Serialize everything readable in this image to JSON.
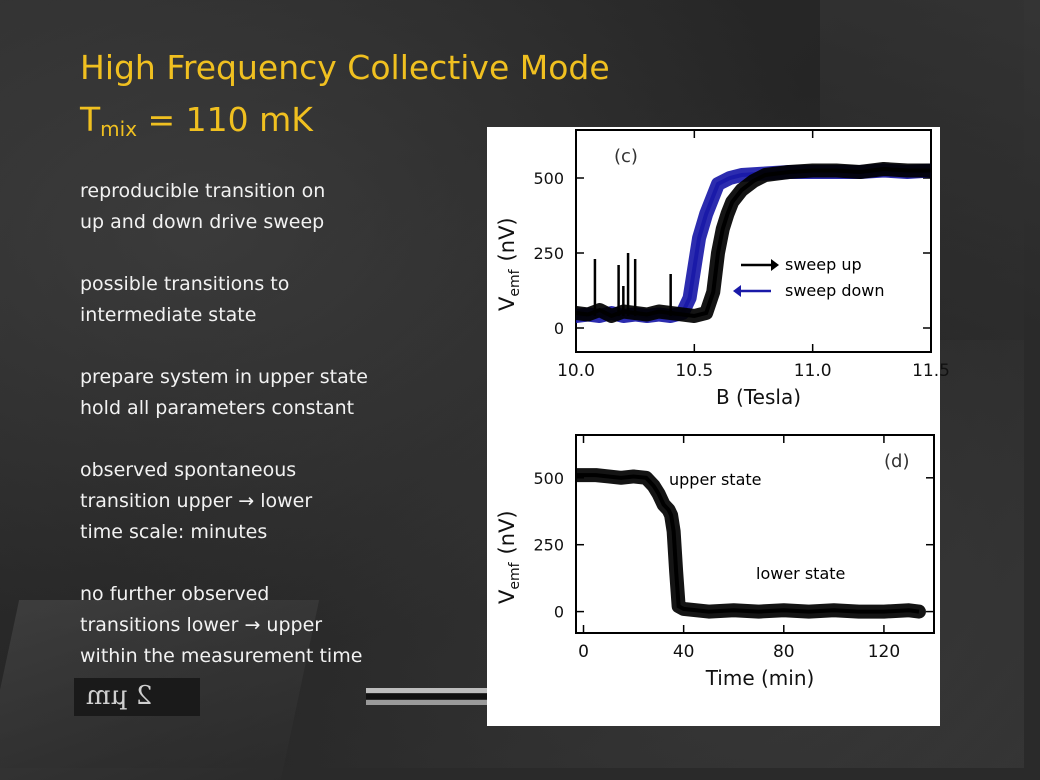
{
  "slide": {
    "title_line1": "High Frequency Collective Mode",
    "title_T": "T",
    "title_sub": "mix",
    "title_rest": " =  110 mK",
    "bullets": [
      [
        "reproducible transition on",
        "up and down drive sweep"
      ],
      [
        "possible transitions to",
        "intermediate state"
      ],
      [
        "prepare system in upper state",
        "hold all parameters constant"
      ],
      [
        "observed spontaneous",
        "transition   upper → lower",
        "time scale: minutes"
      ],
      [
        "no further observed",
        "transitions lower → upper",
        "within the measurement time"
      ]
    ],
    "scale_label": "2 µm"
  },
  "colors": {
    "title": "#f0c020",
    "text": "#f2f2f2",
    "sweep_up": "#000000",
    "sweep_down": "#1a1aa8"
  },
  "chart_data": [
    {
      "type": "line",
      "panel_label": "(c)",
      "xlabel": "B  (Tesla)",
      "ylabel": "V",
      "ylabel_sub": "emf",
      "ylabel_unit": "(nV)",
      "xlim": [
        10.0,
        11.5
      ],
      "ylim": [
        -80,
        660
      ],
      "xticks": [
        "10.0",
        "10.5",
        "11.0",
        "11.5"
      ],
      "yticks": [
        "0",
        "250",
        "500"
      ],
      "series": [
        {
          "name": "sweep up",
          "x": [
            10.0,
            10.05,
            10.1,
            10.15,
            10.2,
            10.25,
            10.3,
            10.35,
            10.4,
            10.45,
            10.5,
            10.55,
            10.58,
            10.6,
            10.62,
            10.64,
            10.66,
            10.7,
            10.75,
            10.8,
            10.9,
            11.0,
            11.1,
            11.2,
            11.3,
            11.4,
            11.5
          ],
          "y": [
            50,
            45,
            60,
            40,
            55,
            50,
            45,
            55,
            50,
            45,
            40,
            50,
            120,
            250,
            330,
            380,
            420,
            460,
            490,
            510,
            520,
            525,
            525,
            520,
            530,
            525,
            525
          ]
        },
        {
          "name": "sweep down",
          "x": [
            10.0,
            10.05,
            10.1,
            10.15,
            10.2,
            10.25,
            10.3,
            10.35,
            10.4,
            10.45,
            10.48,
            10.5,
            10.52,
            10.55,
            10.58,
            10.6,
            10.65,
            10.7,
            10.8,
            10.9,
            11.0,
            11.1,
            11.2,
            11.3,
            11.4,
            11.5
          ],
          "y": [
            40,
            45,
            40,
            50,
            40,
            45,
            40,
            45,
            40,
            50,
            100,
            200,
            300,
            380,
            440,
            480,
            500,
            510,
            515,
            520,
            520,
            520,
            520,
            525,
            520,
            525
          ]
        }
      ],
      "spikes": [
        {
          "x": 10.08,
          "y": 230
        },
        {
          "x": 10.18,
          "y": 210
        },
        {
          "x": 10.2,
          "y": 140
        },
        {
          "x": 10.22,
          "y": 250
        },
        {
          "x": 10.25,
          "y": 230
        },
        {
          "x": 10.4,
          "y": 180
        }
      ],
      "legend": [
        {
          "label": "sweep up",
          "color": "#000000"
        },
        {
          "label": "sweep down",
          "color": "#1a1aa8"
        }
      ]
    },
    {
      "type": "line",
      "panel_label": "(d)",
      "xlabel": "Time (min)",
      "ylabel": "V",
      "ylabel_sub": "emf",
      "ylabel_unit": "(nV)",
      "xlim": [
        -3,
        140
      ],
      "ylim": [
        -80,
        660
      ],
      "xticks": [
        "0",
        "40",
        "80",
        "120"
      ],
      "yticks": [
        "0",
        "250",
        "500"
      ],
      "series": [
        {
          "name": "",
          "x": [
            -3,
            5,
            10,
            15,
            20,
            25,
            28,
            30,
            32,
            34,
            35,
            36,
            37,
            38,
            40,
            50,
            60,
            70,
            80,
            90,
            100,
            110,
            120,
            130,
            134
          ],
          "y": [
            510,
            510,
            505,
            500,
            505,
            500,
            470,
            440,
            400,
            380,
            360,
            300,
            150,
            20,
            10,
            0,
            5,
            0,
            5,
            0,
            5,
            0,
            0,
            5,
            0
          ]
        }
      ],
      "annotations": [
        "upper state",
        "lower state"
      ]
    }
  ]
}
